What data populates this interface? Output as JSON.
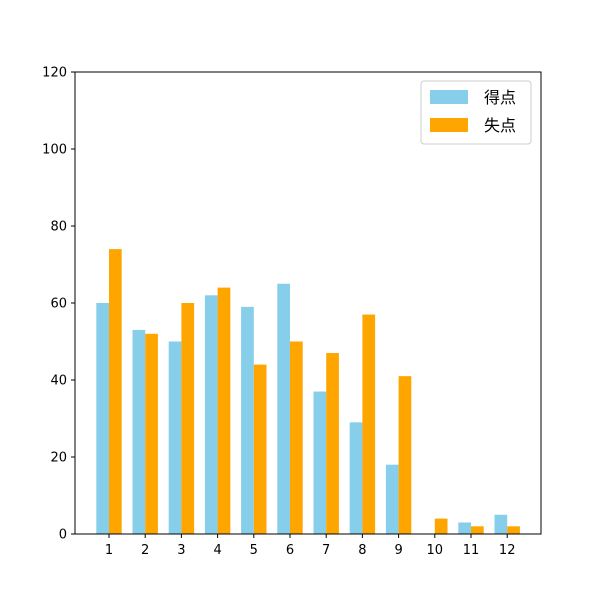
{
  "chart_data": {
    "type": "bar",
    "categories": [
      "1",
      "2",
      "3",
      "4",
      "5",
      "6",
      "7",
      "8",
      "9",
      "10",
      "11",
      "12"
    ],
    "series": [
      {
        "name": "得点",
        "color": "#87ceeb",
        "values": [
          60,
          53,
          50,
          62,
          59,
          65,
          37,
          29,
          18,
          0,
          3,
          5
        ]
      },
      {
        "name": "失点",
        "color": "#ffa500",
        "values": [
          74,
          52,
          60,
          64,
          44,
          50,
          47,
          57,
          41,
          4,
          2,
          2
        ]
      }
    ],
    "title": "",
    "xlabel": "",
    "ylabel": "",
    "ylim": [
      0,
      120
    ],
    "yticks": [
      0,
      20,
      40,
      60,
      80,
      100,
      120
    ],
    "grid": false,
    "legend_position": "top-right"
  }
}
